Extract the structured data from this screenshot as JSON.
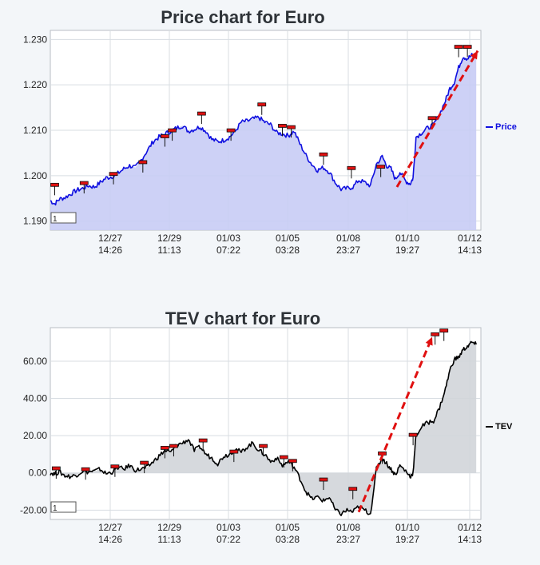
{
  "chart_data": [
    {
      "type": "area",
      "title": "Price chart for Euro",
      "series_name": "Price",
      "color": "#1010e0",
      "fill": "#c8ccf5",
      "ylim": [
        1.188,
        1.232
      ],
      "yticks": [
        "1.190",
        "1.200",
        "1.210",
        "1.220",
        "1.230"
      ],
      "ytick_values": [
        1.19,
        1.2,
        1.21,
        1.22,
        1.23
      ],
      "xticks": [
        {
          "date": "12/27",
          "time": "14:26"
        },
        {
          "date": "12/29",
          "time": "11:13"
        },
        {
          "date": "01/03",
          "time": "07:22"
        },
        {
          "date": "01/05",
          "time": "03:28"
        },
        {
          "date": "01/08",
          "time": "23:27"
        },
        {
          "date": "01/10",
          "time": "19:27"
        },
        {
          "date": "01/12",
          "time": "14:13"
        }
      ],
      "box_label": "1",
      "points": [
        [
          0,
          1.1945
        ],
        [
          6,
          1.1938
        ],
        [
          12,
          1.1948
        ],
        [
          20,
          1.1952
        ],
        [
          28,
          1.196
        ],
        [
          36,
          1.1968
        ],
        [
          44,
          1.1972
        ],
        [
          52,
          1.1978
        ],
        [
          60,
          1.1975
        ],
        [
          68,
          1.1985
        ],
        [
          76,
          1.1995
        ],
        [
          84,
          1.1998
        ],
        [
          92,
          1.2005
        ],
        [
          100,
          1.2015
        ],
        [
          108,
          1.2022
        ],
        [
          116,
          1.2018
        ],
        [
          124,
          1.2035
        ],
        [
          132,
          1.2055
        ],
        [
          140,
          1.2075
        ],
        [
          148,
          1.2085
        ],
        [
          156,
          1.2092
        ],
        [
          164,
          1.2098
        ],
        [
          172,
          1.2105
        ],
        [
          180,
          1.211
        ],
        [
          188,
          1.2098
        ],
        [
          196,
          1.2102
        ],
        [
          204,
          1.2108
        ],
        [
          212,
          1.2098
        ],
        [
          220,
          1.208
        ],
        [
          228,
          1.2075
        ],
        [
          236,
          1.2078
        ],
        [
          244,
          1.2085
        ],
        [
          252,
          1.2098
        ],
        [
          260,
          1.2118
        ],
        [
          268,
          1.212
        ],
        [
          276,
          1.2125
        ],
        [
          284,
          1.2128
        ],
        [
          292,
          1.2118
        ],
        [
          300,
          1.2112
        ],
        [
          308,
          1.2095
        ],
        [
          316,
          1.2092
        ],
        [
          324,
          1.2088
        ],
        [
          332,
          1.2098
        ],
        [
          340,
          1.207
        ],
        [
          348,
          1.2045
        ],
        [
          356,
          1.2025
        ],
        [
          364,
          1.2012
        ],
        [
          372,
          1.2018
        ],
        [
          380,
          1.2008
        ],
        [
          388,
          1.1985
        ],
        [
          396,
          1.197
        ],
        [
          404,
          1.1972
        ],
        [
          412,
          1.1975
        ],
        [
          420,
          1.199
        ],
        [
          428,
          1.1985
        ],
        [
          436,
          1.1978
        ],
        [
          444,
          1.2025
        ],
        [
          452,
          1.2042
        ],
        [
          458,
          1.2022
        ],
        [
          464,
          1.2015
        ],
        [
          470,
          1.1992
        ],
        [
          476,
          1.2008
        ],
        [
          484,
          1.1988
        ],
        [
          490,
          1.1982
        ],
        [
          494,
          1.1995
        ],
        [
          498,
          1.2085
        ],
        [
          506,
          1.2095
        ],
        [
          514,
          1.2105
        ],
        [
          522,
          1.2112
        ],
        [
          530,
          1.2135
        ],
        [
          538,
          1.2165
        ],
        [
          544,
          1.2192
        ],
        [
          550,
          1.2205
        ],
        [
          556,
          1.2238
        ],
        [
          562,
          1.2262
        ],
        [
          568,
          1.2258
        ],
        [
          574,
          1.2265
        ],
        [
          580,
          1.2262
        ]
      ],
      "markers": [
        [
          6,
          1.1978
        ],
        [
          46,
          1.1982
        ],
        [
          86,
          1.2002
        ],
        [
          126,
          1.2028
        ],
        [
          156,
          1.2085
        ],
        [
          166,
          1.2098
        ],
        [
          206,
          1.2135
        ],
        [
          246,
          1.2098
        ],
        [
          288,
          1.2155
        ],
        [
          316,
          1.2108
        ],
        [
          328,
          1.2105
        ],
        [
          372,
          1.2045
        ],
        [
          410,
          1.2015
        ],
        [
          450,
          1.2018
        ],
        [
          520,
          1.2125
        ],
        [
          556,
          1.2282
        ],
        [
          568,
          1.2282
        ]
      ],
      "arrow": {
        "from": [
          472,
          1.1975
        ],
        "to": [
          582,
          1.2275
        ]
      }
    },
    {
      "type": "area",
      "title": "TEV chart for Euro",
      "series_name": "TEV",
      "color": "#000000",
      "fill": "#d1d5d9",
      "ylim": [
        -25,
        78
      ],
      "yticks": [
        "-20.00",
        "0.00",
        "20.00",
        "40.00",
        "60.00"
      ],
      "ytick_values": [
        -20,
        0,
        20,
        40,
        60
      ],
      "xticks": [
        {
          "date": "12/27",
          "time": "14:26"
        },
        {
          "date": "12/29",
          "time": "11:13"
        },
        {
          "date": "01/03",
          "time": "07:22"
        },
        {
          "date": "01/05",
          "time": "03:28"
        },
        {
          "date": "01/08",
          "time": "23:27"
        },
        {
          "date": "01/10",
          "time": "19:27"
        },
        {
          "date": "01/12",
          "time": "14:13"
        }
      ],
      "box_label": "1",
      "points": [
        [
          0,
          0
        ],
        [
          6,
          -0.5
        ],
        [
          12,
          0.5
        ],
        [
          20,
          -1.5
        ],
        [
          28,
          -2
        ],
        [
          36,
          -1
        ],
        [
          44,
          1
        ],
        [
          52,
          0.5
        ],
        [
          60,
          1
        ],
        [
          68,
          2
        ],
        [
          76,
          -0.5
        ],
        [
          84,
          0.5
        ],
        [
          92,
          3
        ],
        [
          100,
          2
        ],
        [
          108,
          4
        ],
        [
          116,
          1.5
        ],
        [
          124,
          2
        ],
        [
          132,
          3
        ],
        [
          140,
          6
        ],
        [
          148,
          9
        ],
        [
          156,
          12
        ],
        [
          164,
          11
        ],
        [
          172,
          15
        ],
        [
          180,
          16
        ],
        [
          188,
          18
        ],
        [
          196,
          12
        ],
        [
          204,
          14
        ],
        [
          212,
          10
        ],
        [
          220,
          8
        ],
        [
          228,
          5
        ],
        [
          236,
          9
        ],
        [
          244,
          10
        ],
        [
          252,
          13
        ],
        [
          260,
          11
        ],
        [
          268,
          14
        ],
        [
          276,
          16
        ],
        [
          284,
          12
        ],
        [
          292,
          10
        ],
        [
          300,
          6
        ],
        [
          308,
          8
        ],
        [
          316,
          4
        ],
        [
          324,
          6
        ],
        [
          332,
          3
        ],
        [
          340,
          -3
        ],
        [
          348,
          -10
        ],
        [
          356,
          -14
        ],
        [
          364,
          -13
        ],
        [
          372,
          -15
        ],
        [
          380,
          -13
        ],
        [
          388,
          -20
        ],
        [
          396,
          -22
        ],
        [
          404,
          -20
        ],
        [
          412,
          -21
        ],
        [
          420,
          -18
        ],
        [
          428,
          -20
        ],
        [
          436,
          -22
        ],
        [
          444,
          2
        ],
        [
          452,
          8
        ],
        [
          458,
          5
        ],
        [
          464,
          2
        ],
        [
          470,
          -1
        ],
        [
          476,
          4
        ],
        [
          484,
          1
        ],
        [
          490,
          -2
        ],
        [
          494,
          0
        ],
        [
          498,
          20
        ],
        [
          506,
          25
        ],
        [
          514,
          27
        ],
        [
          522,
          28
        ],
        [
          530,
          35
        ],
        [
          538,
          45
        ],
        [
          544,
          55
        ],
        [
          550,
          61
        ],
        [
          556,
          62
        ],
        [
          562,
          66
        ],
        [
          568,
          68
        ],
        [
          574,
          70
        ],
        [
          580,
          69
        ]
      ],
      "markers": [
        [
          8,
          2
        ],
        [
          48,
          1.5
        ],
        [
          88,
          3
        ],
        [
          128,
          5
        ],
        [
          156,
          13
        ],
        [
          168,
          14
        ],
        [
          208,
          17
        ],
        [
          250,
          11
        ],
        [
          290,
          14
        ],
        [
          318,
          8
        ],
        [
          330,
          6
        ],
        [
          372,
          -4
        ],
        [
          412,
          -9
        ],
        [
          452,
          10
        ],
        [
          494,
          20
        ],
        [
          524,
          74
        ],
        [
          536,
          76
        ]
      ],
      "arrow": {
        "from": [
          420,
          -21
        ],
        "to": [
          520,
          73
        ]
      }
    }
  ]
}
